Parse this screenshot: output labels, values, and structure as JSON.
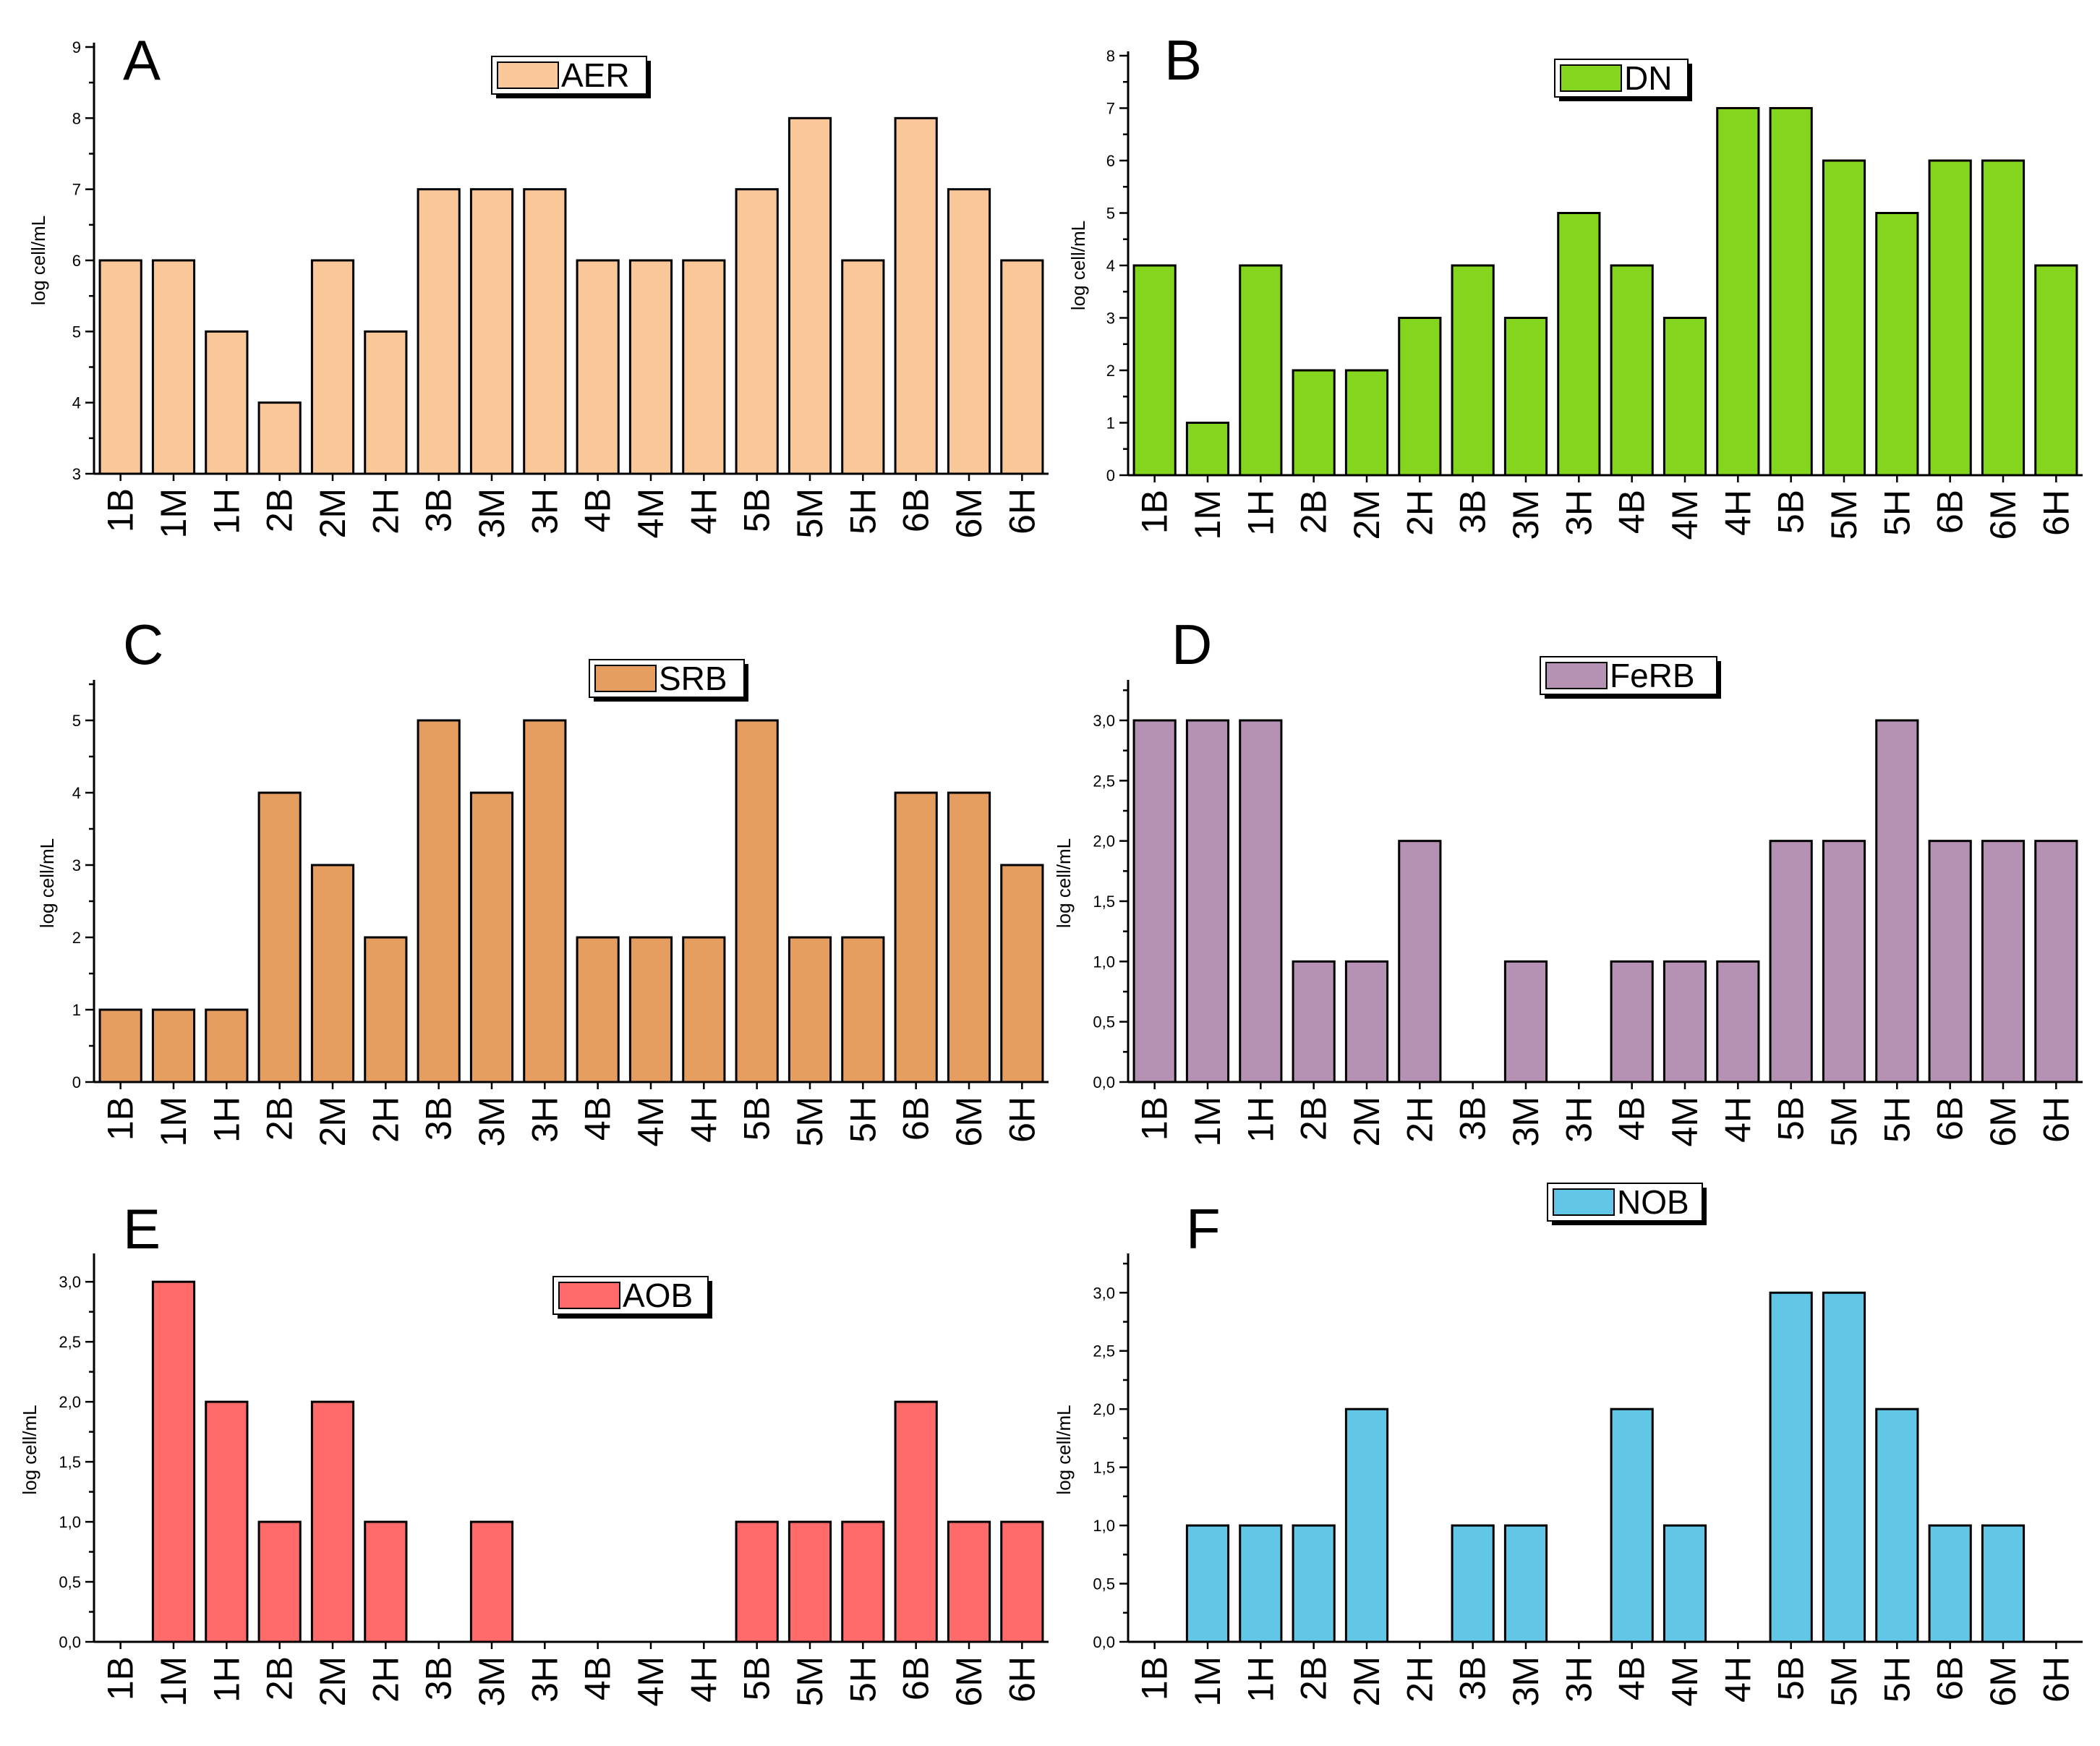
{
  "chart_data": [
    {
      "id": "A",
      "type": "bar",
      "panel_label": "A",
      "legend": "AER",
      "color": "#FAC898",
      "ylabel": "log cell/mL",
      "ylim": [
        3,
        9
      ],
      "yticks": [
        "3",
        "4",
        "5",
        "6",
        "7",
        "8",
        "9"
      ],
      "categories": [
        "1B",
        "1M",
        "1H",
        "2B",
        "2M",
        "2H",
        "3B",
        "3M",
        "3H",
        "4B",
        "4M",
        "4H",
        "5B",
        "5M",
        "5H",
        "6B",
        "6M",
        "6H"
      ],
      "values": [
        6,
        6,
        5,
        4,
        6,
        5,
        7,
        7,
        7,
        6,
        6,
        6,
        7,
        8,
        6,
        8,
        7,
        6
      ]
    },
    {
      "id": "B",
      "type": "bar",
      "panel_label": "B",
      "legend": "DN",
      "color": "#84D51E",
      "ylabel": "log cell/mL",
      "ylim": [
        0,
        8
      ],
      "yticks": [
        "0",
        "1",
        "2",
        "3",
        "4",
        "5",
        "6",
        "7",
        "8"
      ],
      "categories": [
        "1B",
        "1M",
        "1H",
        "2B",
        "2M",
        "2H",
        "3B",
        "3M",
        "3H",
        "4B",
        "4M",
        "4H",
        "5B",
        "5M",
        "5H",
        "6B",
        "6M",
        "6H"
      ],
      "values": [
        4,
        1,
        4,
        2,
        2,
        3,
        4,
        3,
        5,
        4,
        3,
        7,
        7,
        6,
        5,
        6,
        6,
        4
      ]
    },
    {
      "id": "C",
      "type": "bar",
      "panel_label": "C",
      "legend": "SRB",
      "color": "#E59E5F",
      "ylabel": "log cell/mL",
      "ylim": [
        0,
        5.5
      ],
      "yticks": [
        "0",
        "1",
        "2",
        "3",
        "4",
        "5"
      ],
      "categories": [
        "1B",
        "1M",
        "1H",
        "2B",
        "2M",
        "2H",
        "3B",
        "3M",
        "3H",
        "4B",
        "4M",
        "4H",
        "5B",
        "5M",
        "5H",
        "6B",
        "6M",
        "6H"
      ],
      "values": [
        1,
        1,
        1,
        4,
        3,
        2,
        5,
        4,
        5,
        2,
        2,
        2,
        5,
        2,
        2,
        4,
        4,
        3
      ]
    },
    {
      "id": "D",
      "type": "bar",
      "panel_label": "D",
      "legend": "FeRB",
      "color": "#B591B4",
      "ylabel": "log cell/mL",
      "ylim": [
        0,
        3.3
      ],
      "yticks": [
        "0,0",
        "0,5",
        "1,0",
        "1,5",
        "2,0",
        "2,5",
        "3,0"
      ],
      "categories": [
        "1B",
        "1M",
        "1H",
        "2B",
        "2M",
        "2H",
        "3B",
        "3M",
        "3H",
        "4B",
        "4M",
        "4H",
        "5B",
        "5M",
        "5H",
        "6B",
        "6M",
        "6H"
      ],
      "values": [
        3,
        3,
        3,
        1,
        1,
        2,
        0,
        1,
        0,
        1,
        1,
        1,
        2,
        2,
        3,
        2,
        2,
        2
      ]
    },
    {
      "id": "E",
      "type": "bar",
      "panel_label": "E",
      "legend": "AOB",
      "color": "#FF6B6B",
      "ylabel": "log cell/mL",
      "ylim": [
        0,
        3.2
      ],
      "yticks": [
        "0,0",
        "0,5",
        "1,0",
        "1,5",
        "2,0",
        "2,5",
        "3,0"
      ],
      "categories": [
        "1B",
        "1M",
        "1H",
        "2B",
        "2M",
        "2H",
        "3B",
        "3M",
        "3H",
        "4B",
        "4M",
        "4H",
        "5B",
        "5M",
        "5H",
        "6B",
        "6M",
        "6H"
      ],
      "values": [
        0,
        3,
        2,
        1,
        2,
        1,
        0,
        1,
        0,
        0,
        0,
        0,
        1,
        1,
        1,
        2,
        1,
        1
      ]
    },
    {
      "id": "F",
      "type": "bar",
      "panel_label": "F",
      "legend": "NOB",
      "color": "#62C6E6",
      "ylabel": "log cell/mL",
      "ylim": [
        0,
        3.3
      ],
      "yticks": [
        "0,0",
        "0,5",
        "1,0",
        "1,5",
        "2,0",
        "2,5",
        "3,0"
      ],
      "categories": [
        "1B",
        "1M",
        "1H",
        "2B",
        "2M",
        "2H",
        "3B",
        "3M",
        "3H",
        "4B",
        "4M",
        "4H",
        "5B",
        "5M",
        "5H",
        "6B",
        "6M",
        "6H"
      ],
      "values": [
        0,
        1,
        1,
        1,
        2,
        0,
        1,
        1,
        0,
        2,
        1,
        0,
        3,
        3,
        2,
        1,
        1,
        0
      ]
    }
  ]
}
